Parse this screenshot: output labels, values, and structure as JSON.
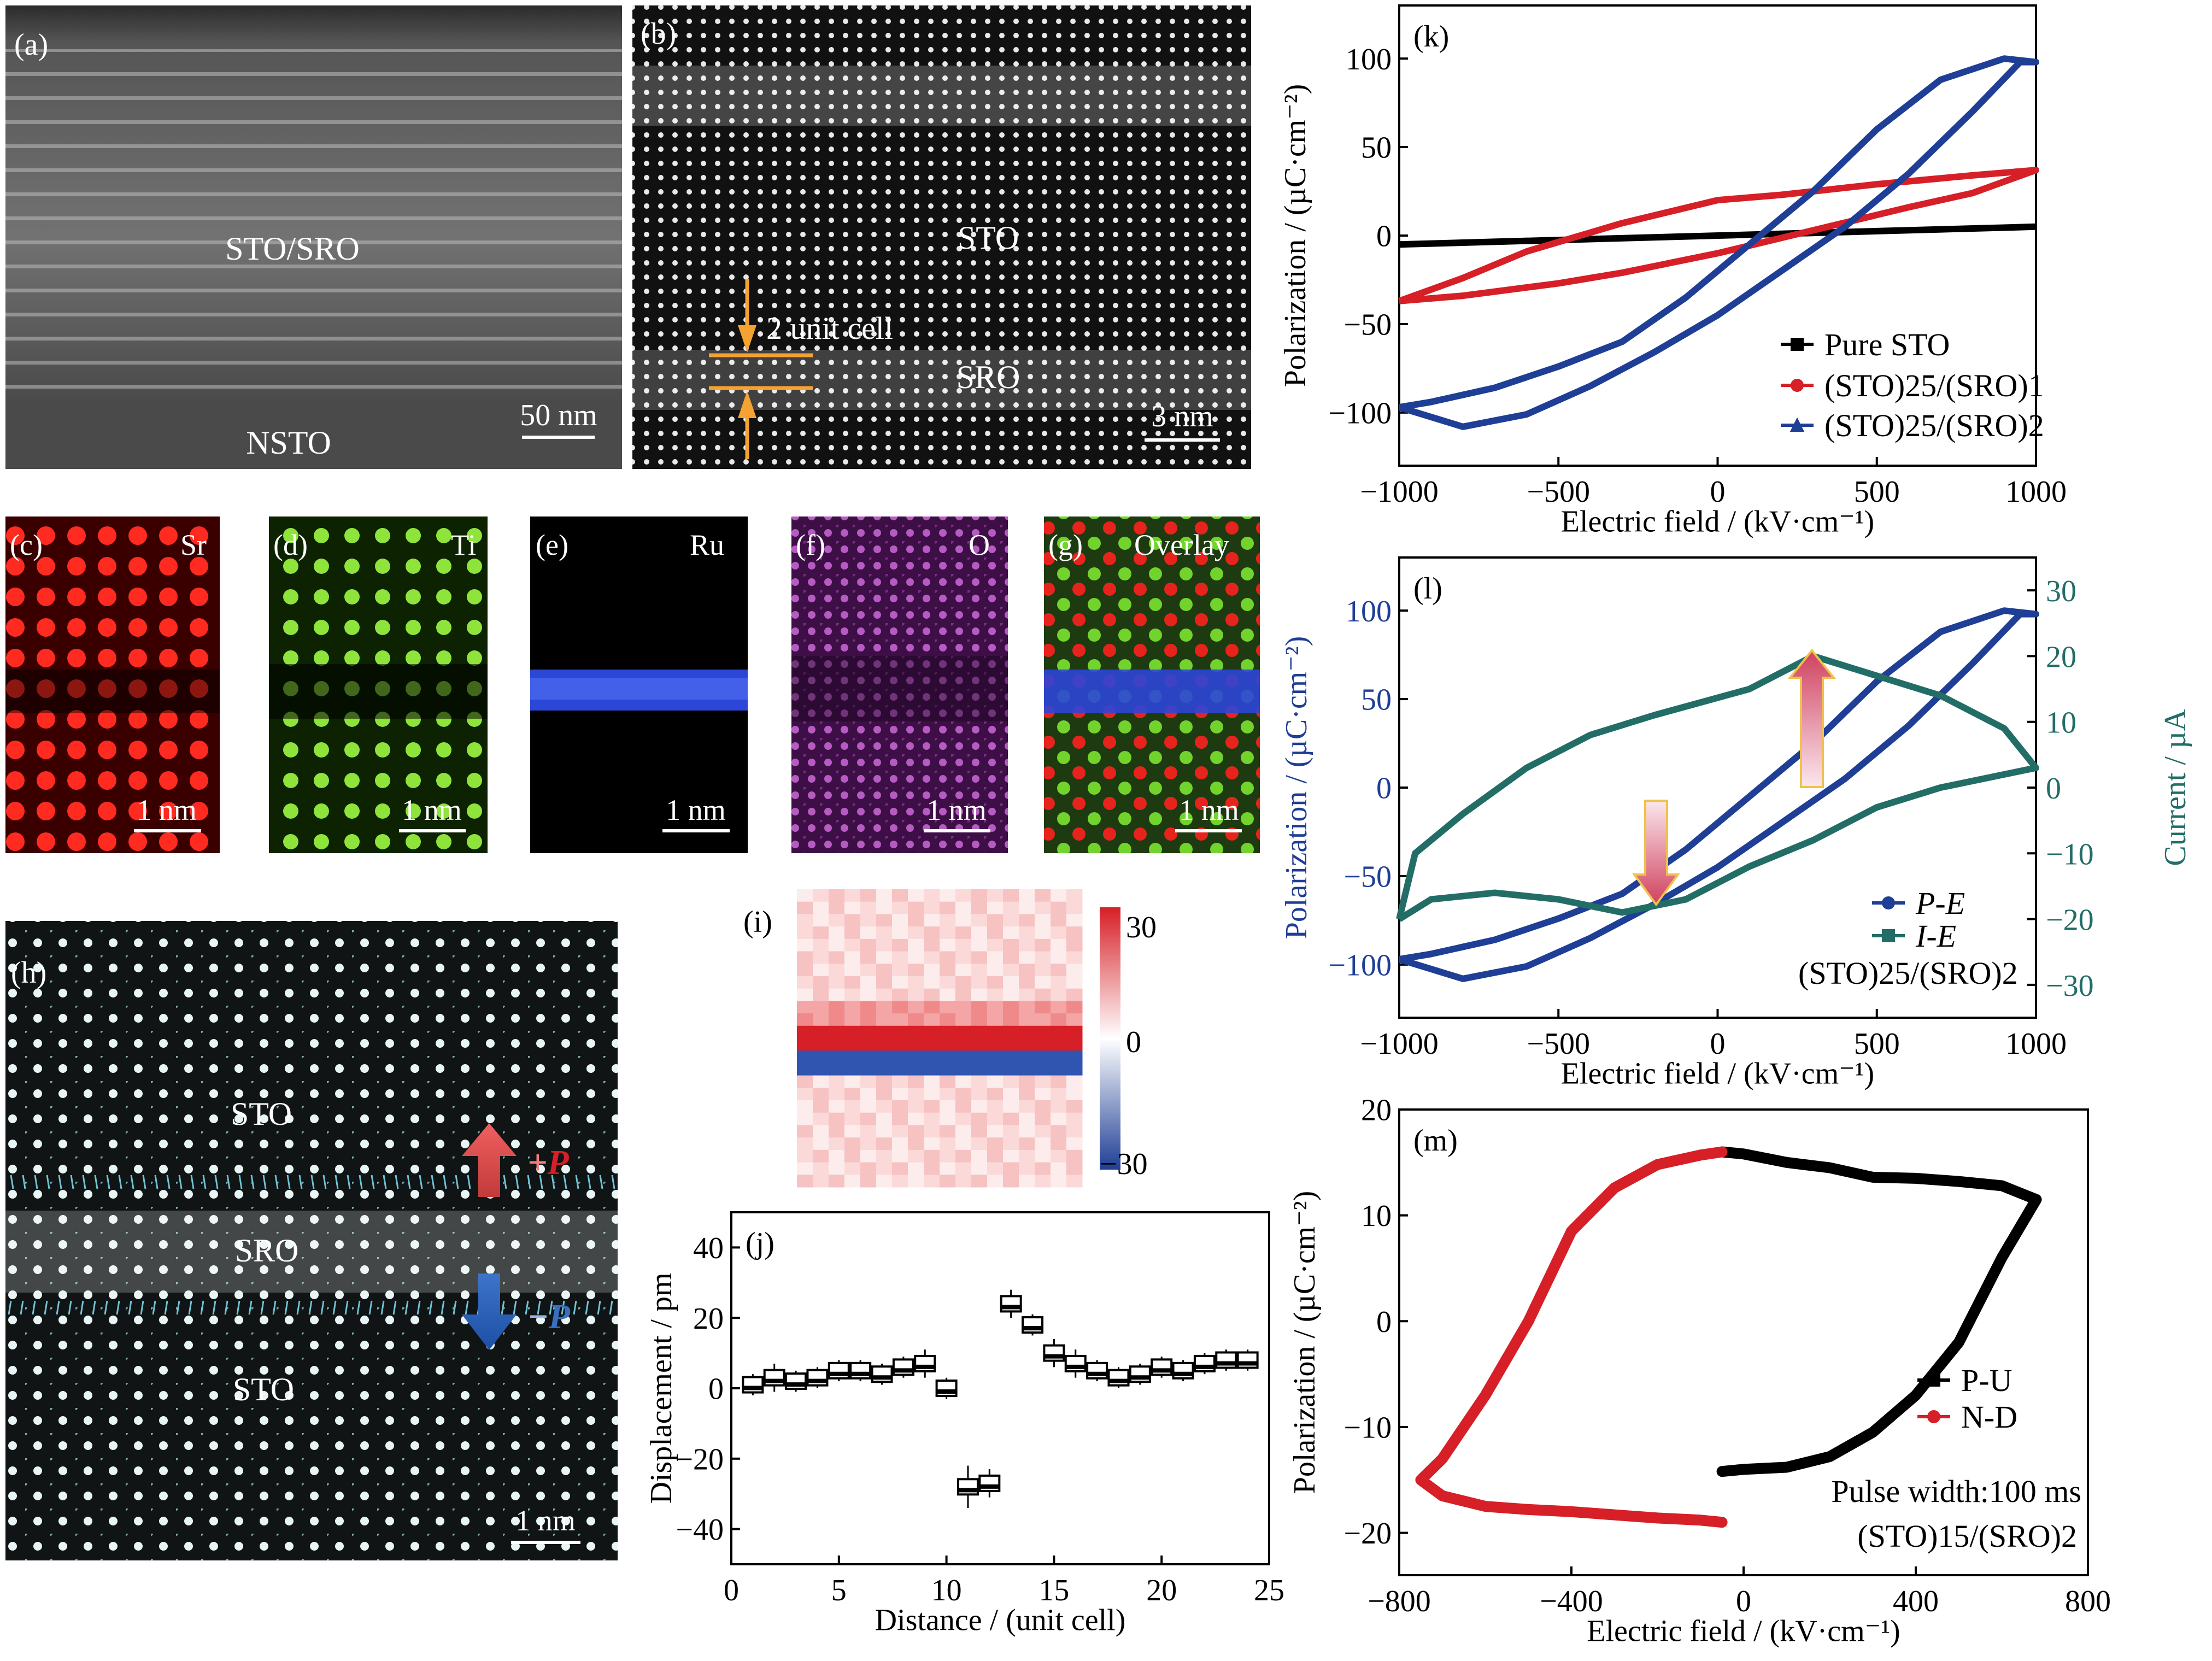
{
  "panels": {
    "a": {
      "label": "(a)",
      "region_text": "STO/SRO",
      "substrate_text": "NSTO",
      "scale": "50 nm"
    },
    "b": {
      "label": "(b)",
      "layer1": "STO",
      "layer2": "SRO",
      "unit_cell": "2 unit cell",
      "scale": "3 nm"
    },
    "c": {
      "label": "(c)",
      "element": "Sr",
      "scale": "1 nm",
      "color": "#e4161d"
    },
    "d": {
      "label": "(d)",
      "element": "Ti",
      "scale": "1 nm",
      "color": "#6ec919"
    },
    "e": {
      "label": "(e)",
      "element": "Ru",
      "scale": "1 nm",
      "color": "#2c46d8"
    },
    "f": {
      "label": "(f)",
      "element": "O",
      "scale": "1 nm",
      "color": "#a24aa6"
    },
    "g": {
      "label": "(g)",
      "element": "Overlay",
      "scale": "1 nm"
    },
    "h": {
      "label": "(h)",
      "top_layer": "STO",
      "mid_layer": "SRO",
      "bottom_layer": "STO",
      "plus_p_sign": "+",
      "minus_p_sign": "−",
      "p_symbol": "P",
      "scale": "1 nm"
    },
    "i": {
      "label": "(i)",
      "colorbar_ticks": [
        "30",
        "0",
        "−30"
      ]
    }
  },
  "chart_data": [
    {
      "id": "j",
      "type": "scatter",
      "label": "(j)",
      "xlabel": "Distance / (unit cell)",
      "ylabel": "Displacement / pm",
      "xlim": [
        0,
        25
      ],
      "ylim": [
        -50,
        50
      ],
      "xticks": [
        "0",
        "5",
        "10",
        "15",
        "20",
        "25"
      ],
      "yticks": [
        "40",
        "20",
        "0",
        "−20",
        "−40"
      ],
      "x": [
        1,
        2,
        3,
        4,
        5,
        6,
        7,
        8,
        9,
        10,
        11,
        12,
        13,
        14,
        15,
        16,
        17,
        18,
        19,
        20,
        21,
        22,
        23,
        24
      ],
      "values": [
        1,
        3,
        2,
        3,
        5,
        5,
        4,
        6,
        7,
        0,
        -28,
        -27,
        24,
        18,
        10,
        7,
        5,
        3,
        4,
        6,
        5,
        7,
        8,
        8
      ],
      "error": [
        3,
        4,
        3,
        3,
        3,
        3,
        3,
        3,
        4,
        3,
        6,
        4,
        4,
        3,
        4,
        4,
        3,
        3,
        3,
        3,
        3,
        3,
        3,
        3
      ]
    },
    {
      "id": "k",
      "type": "line",
      "label": "(k)",
      "xlabel": "Electric field / (kV·cm⁻¹)",
      "ylabel": "Polarization / (µC·cm⁻²)",
      "xlim": [
        -1000,
        1000
      ],
      "ylim": [
        -130,
        130
      ],
      "xticks": [
        "−1000",
        "−500",
        "0",
        "500",
        "1000"
      ],
      "yticks": [
        "100",
        "50",
        "0",
        "−50",
        "−100"
      ],
      "legend": "bottom-right",
      "series": [
        {
          "name": "Pure STO",
          "color": "#000000",
          "marker": "square",
          "x": [
            -1000,
            1000
          ],
          "y": [
            -5,
            5
          ]
        },
        {
          "name": "(STO)25/(SRO)1",
          "color": "#d61f26",
          "marker": "circle",
          "x": [
            -1000,
            -800,
            -500,
            -300,
            0,
            300,
            600,
            800,
            1000,
            800,
            500,
            200,
            0,
            -300,
            -600,
            -800,
            -1000
          ],
          "y": [
            -37,
            -34,
            -27,
            -21,
            -10,
            3,
            16,
            24,
            37,
            34,
            29,
            23,
            20,
            7,
            -9,
            -24,
            -37
          ]
        },
        {
          "name": "(STO)25/(SRO)2",
          "color": "#1f3e95",
          "marker": "triangle",
          "x": [
            -1000,
            -800,
            -600,
            -400,
            -200,
            0,
            200,
            400,
            600,
            800,
            950,
            1000,
            900,
            700,
            500,
            300,
            100,
            -100,
            -300,
            -500,
            -700,
            -900,
            -1000
          ],
          "y": [
            -97,
            -108,
            -101,
            -85,
            -66,
            -45,
            -20,
            5,
            35,
            70,
            98,
            98,
            100,
            88,
            60,
            25,
            -5,
            -35,
            -60,
            -74,
            -86,
            -94,
            -97
          ]
        }
      ]
    },
    {
      "id": "l",
      "type": "line",
      "label": "(l)",
      "xlabel": "Electric field / (kV·cm⁻¹)",
      "ylabel": "Polarization / (µC·cm⁻²)",
      "y2label": "Current / µA",
      "xlim": [
        -1000,
        1000
      ],
      "ylim": [
        -130,
        130
      ],
      "y2lim": [
        -35,
        35
      ],
      "xticks": [
        "−1000",
        "−500",
        "0",
        "500",
        "1000"
      ],
      "yticks": [
        "100",
        "50",
        "0",
        "−50",
        "−100"
      ],
      "y2ticks": [
        "30",
        "20",
        "10",
        "0",
        "−10",
        "−20",
        "−30"
      ],
      "annotation": "(STO)25/(SRO)2",
      "series": [
        {
          "name": "P-E",
          "color": "#1f3e95",
          "marker": "circle",
          "x": [
            -1000,
            -800,
            -600,
            -400,
            -200,
            0,
            200,
            400,
            600,
            800,
            950,
            1000,
            900,
            700,
            500,
            300,
            100,
            -100,
            -300,
            -500,
            -700,
            -900,
            -1000
          ],
          "y": [
            -97,
            -108,
            -101,
            -85,
            -66,
            -45,
            -20,
            5,
            35,
            70,
            98,
            98,
            100,
            88,
            60,
            25,
            -5,
            -35,
            -60,
            -74,
            -86,
            -94,
            -97
          ]
        },
        {
          "name": "I-E",
          "color": "#236d67",
          "marker": "square",
          "axis": "right",
          "x": [
            -1000,
            -900,
            -700,
            -500,
            -300,
            -100,
            100,
            300,
            500,
            700,
            900,
            1000,
            900,
            700,
            500,
            300,
            100,
            -200,
            -400,
            -600,
            -800,
            -950,
            -1000
          ],
          "y": [
            -20,
            -17,
            -16,
            -17,
            -19,
            -17,
            -12,
            -8,
            -3,
            0,
            2,
            3,
            9,
            14,
            17,
            20,
            15,
            11,
            8,
            3,
            -4,
            -10,
            -20
          ]
        }
      ]
    },
    {
      "id": "m",
      "type": "line",
      "label": "(m)",
      "xlabel": "Electric field / (kV·cm⁻¹)",
      "ylabel": "Polarization / (µC·cm⁻²)",
      "xlim": [
        -800,
        800
      ],
      "ylim": [
        -24,
        20
      ],
      "xticks": [
        "−800",
        "−400",
        "0",
        "400",
        "800"
      ],
      "yticks": [
        "20",
        "10",
        "0",
        "−10",
        "−20"
      ],
      "annotation_1": "Pulse width:100 ms",
      "annotation_2": "(STO)15/(SRO)2",
      "series": [
        {
          "name": "P-U",
          "color": "#000000",
          "marker": "square",
          "x": [
            -50,
            0,
            100,
            200,
            300,
            400,
            500,
            600,
            680,
            600,
            500,
            400,
            300,
            200,
            100,
            0,
            -50
          ],
          "y": [
            16,
            15.8,
            15,
            14.5,
            13.6,
            13.5,
            13.2,
            12.8,
            11.5,
            6,
            -2,
            -7,
            -10.5,
            -12.8,
            -13.8,
            -14,
            -14.2
          ]
        },
        {
          "name": "N-D",
          "color": "#d61f26",
          "marker": "circle",
          "x": [
            -50,
            -100,
            -200,
            -300,
            -400,
            -500,
            -600,
            -700,
            -750,
            -700,
            -600,
            -500,
            -400,
            -300,
            -200,
            -100,
            -50
          ],
          "y": [
            16,
            15.7,
            14.8,
            12.6,
            8.5,
            0,
            -7,
            -13,
            -15,
            -16.5,
            -17.5,
            -17.8,
            -18,
            -18.3,
            -18.6,
            -18.8,
            -19
          ]
        }
      ]
    }
  ]
}
